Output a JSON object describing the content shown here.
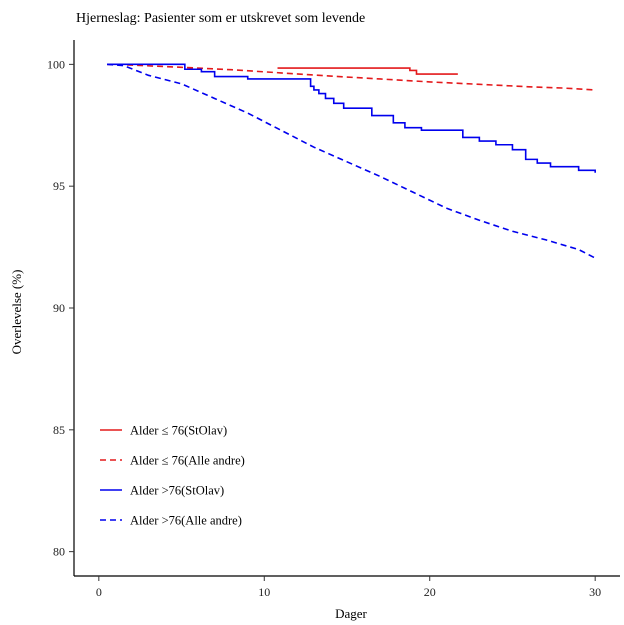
{
  "chart_data": {
    "type": "line",
    "title": "Hjerneslag: Pasienter som er utskrevet som levende",
    "xlabel": "Dager",
    "ylabel": "Overlevelse (%)",
    "xlim": [
      -1.5,
      31.5
    ],
    "ylim": [
      79,
      101
    ],
    "xticks": [
      0,
      10,
      20,
      30
    ],
    "yticks": [
      80,
      85,
      90,
      95,
      100
    ],
    "legend_position": "bottom-left",
    "grid": false,
    "series": [
      {
        "name": "Alder ≤ 76(StOlav)",
        "color": "#e41a1c",
        "dash": "solid",
        "step": true,
        "x": [
          10.8,
          18.8,
          19.2,
          21.7
        ],
        "y": [
          99.85,
          99.75,
          99.6,
          99.6
        ]
      },
      {
        "name": "Alder ≤ 76(Alle andre)",
        "color": "#e41a1c",
        "dash": "dashed",
        "step": false,
        "x": [
          0.5,
          2,
          5,
          8,
          11,
          14,
          17,
          20,
          23,
          26,
          28,
          30
        ],
        "y": [
          100,
          99.97,
          99.88,
          99.78,
          99.65,
          99.52,
          99.4,
          99.28,
          99.18,
          99.08,
          99.03,
          98.95
        ]
      },
      {
        "name": "Alder >76(StOlav)",
        "color": "#0000ee",
        "dash": "solid",
        "step": true,
        "x": [
          0.5,
          1.5,
          5.2,
          6.2,
          7,
          9,
          12.8,
          13,
          13.3,
          13.7,
          14.2,
          14.8,
          16.5,
          17.8,
          18.5,
          19.5,
          22,
          23,
          24,
          25,
          25.8,
          26.5,
          27.3,
          29,
          30
        ],
        "y": [
          100,
          100,
          99.8,
          99.7,
          99.5,
          99.4,
          99.1,
          98.95,
          98.8,
          98.6,
          98.4,
          98.2,
          97.9,
          97.6,
          97.4,
          97.3,
          97.0,
          96.85,
          96.7,
          96.5,
          96.1,
          95.95,
          95.8,
          95.65,
          95.55
        ]
      },
      {
        "name": "Alder >76(Alle andre)",
        "color": "#0000ee",
        "dash": "dashed",
        "step": false,
        "x": [
          0.5,
          1.5,
          3,
          5,
          7,
          9,
          11,
          13,
          15,
          17,
          19,
          21,
          23,
          25,
          27,
          29,
          30
        ],
        "y": [
          100,
          99.95,
          99.55,
          99.2,
          98.6,
          98.0,
          97.3,
          96.6,
          96.0,
          95.4,
          94.75,
          94.1,
          93.6,
          93.15,
          92.8,
          92.4,
          92.05
        ]
      }
    ]
  }
}
